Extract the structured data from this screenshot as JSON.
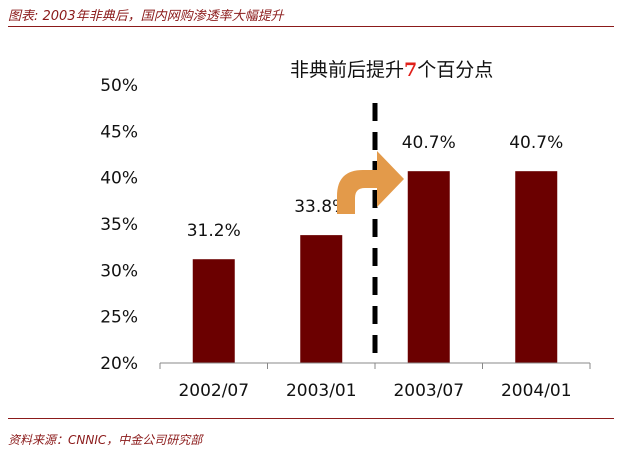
{
  "figure": {
    "title": "图表: 2003年非典后，国内网购渗透率大幅提升",
    "source": "资料来源：CNNIC，中金公司研究部"
  },
  "annotation": {
    "prefix": "非典前后提升",
    "highlight": "7",
    "suffix": "个百分点"
  },
  "colors": {
    "bar": "#6b0000",
    "accent_rule": "#8b1a1a",
    "arrow": "#e39a4a",
    "highlight": "#e0201a"
  },
  "chart_data": {
    "type": "bar",
    "title": "",
    "xlabel": "",
    "ylabel": "",
    "categories": [
      "2002/07",
      "2003/01",
      "2003/07",
      "2004/01"
    ],
    "values": [
      31.2,
      33.8,
      40.7,
      40.7
    ],
    "data_labels": [
      "31.2%",
      "33.8%",
      "40.7%",
      "40.7%"
    ],
    "ylim": [
      20,
      50
    ],
    "yticks": [
      20,
      25,
      30,
      35,
      40,
      45,
      50
    ],
    "ytick_labels": [
      "20%",
      "25%",
      "30%",
      "35%",
      "40%",
      "45%",
      "50%"
    ],
    "grid": false,
    "legend": "none",
    "divider_after_category": "2003/01",
    "arrow_icon": "curved-right-arrow-icon"
  }
}
